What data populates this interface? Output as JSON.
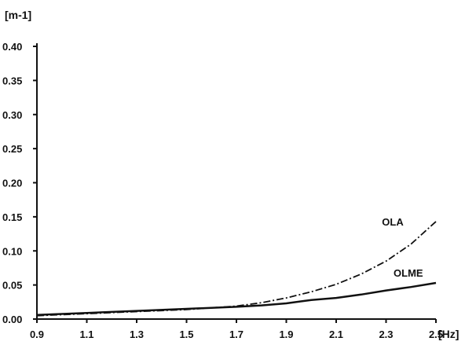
{
  "chart_data": {
    "type": "line",
    "title": "",
    "xlabel": "[Hz]",
    "ylabel": "[m-1]",
    "xlim": [
      0.9,
      2.5
    ],
    "ylim": [
      0.0,
      0.4
    ],
    "x_ticks": [
      0.9,
      1.1,
      1.3,
      1.5,
      1.7,
      1.9,
      2.1,
      2.3,
      2.5
    ],
    "x_tick_labels": [
      "0.9",
      "1.1",
      "1.3",
      "1.5",
      "1.7",
      "1.9",
      "2.1",
      "2.3",
      "2.5"
    ],
    "y_ticks": [
      0.0,
      0.05,
      0.1,
      0.15,
      0.2,
      0.25,
      0.3,
      0.35,
      0.4
    ],
    "y_tick_labels": [
      "0.00",
      "0.05",
      "0.10",
      "0.15",
      "0.20",
      "0.25",
      "0.30",
      "0.35",
      "0.40"
    ],
    "grid": false,
    "legend": "none",
    "series": [
      {
        "name": "OLA",
        "line_style": "dash-dot",
        "color": "#111111",
        "x": [
          0.9,
          1.1,
          1.3,
          1.5,
          1.7,
          1.8,
          1.9,
          2.0,
          2.1,
          2.2,
          2.3,
          2.4,
          2.5
        ],
        "y": [
          0.005,
          0.008,
          0.011,
          0.014,
          0.019,
          0.024,
          0.031,
          0.04,
          0.051,
          0.066,
          0.085,
          0.11,
          0.143
        ]
      },
      {
        "name": "OLME",
        "line_style": "solid",
        "color": "#111111",
        "x": [
          0.9,
          1.1,
          1.3,
          1.5,
          1.7,
          1.8,
          1.9,
          2.0,
          2.1,
          2.2,
          2.3,
          2.4,
          2.5
        ],
        "y": [
          0.006,
          0.009,
          0.012,
          0.015,
          0.018,
          0.02,
          0.023,
          0.028,
          0.031,
          0.036,
          0.042,
          0.047,
          0.053
        ]
      }
    ]
  }
}
